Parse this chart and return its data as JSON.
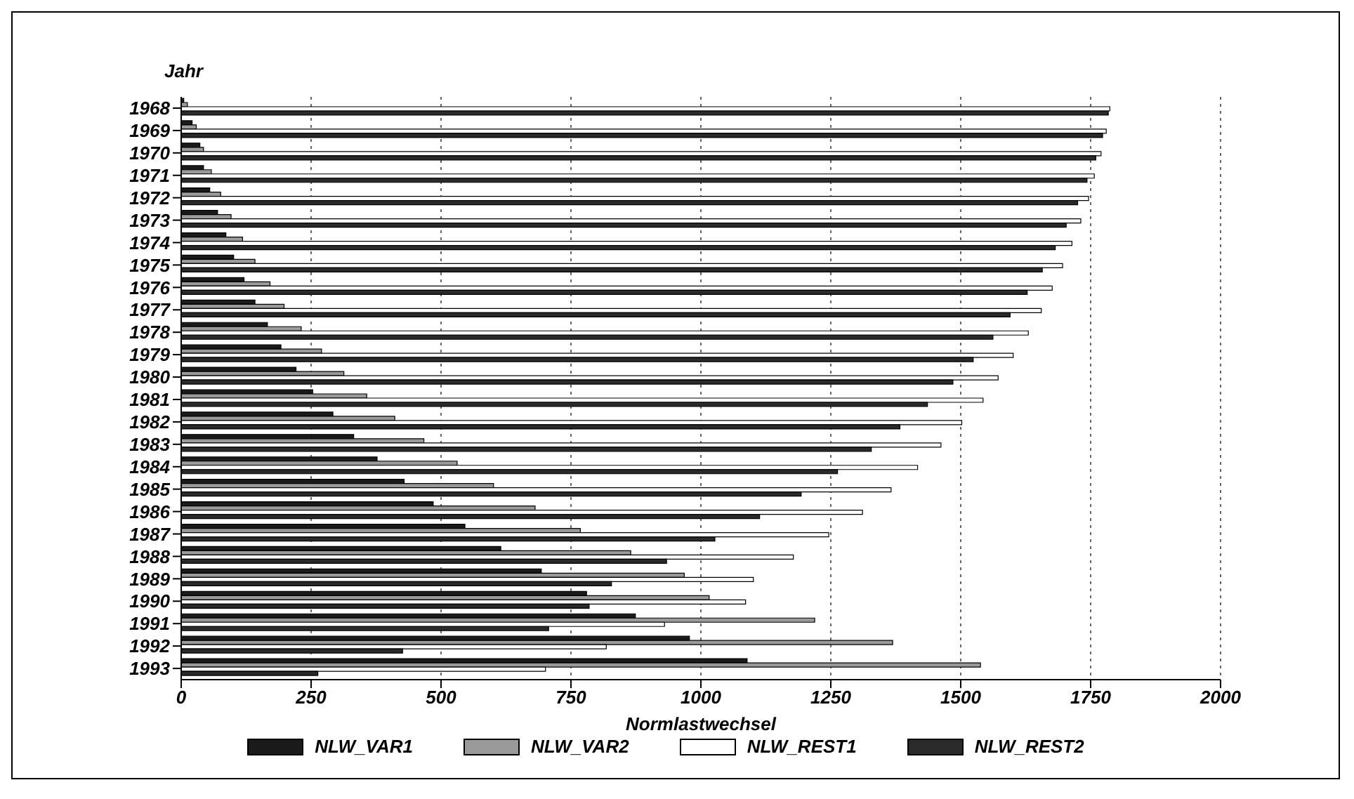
{
  "chart_data": {
    "type": "bar",
    "orientation": "horizontal",
    "ylabel": "Jahr",
    "xlabel": "Normlastwechsel",
    "categories": [
      "1968",
      "1969",
      "1970",
      "1971",
      "1972",
      "1973",
      "1974",
      "1975",
      "1976",
      "1977",
      "1978",
      "1979",
      "1980",
      "1981",
      "1982",
      "1983",
      "1984",
      "1985",
      "1986",
      "1987",
      "1988",
      "1989",
      "1990",
      "1991",
      "1992",
      "1993"
    ],
    "series": [
      {
        "name": "NLW_VAR1",
        "color": "#1a1a1a",
        "values": [
          5,
          21,
          36,
          43,
          55,
          70,
          86,
          101,
          121,
          142,
          166,
          192,
          221,
          253,
          292,
          332,
          377,
          429,
          485,
          546,
          615,
          693,
          780,
          874,
          978,
          1089
        ]
      },
      {
        "name": "NLW_VAR2",
        "color": "#9a9a9a",
        "values": [
          12,
          29,
          43,
          58,
          76,
          96,
          118,
          142,
          171,
          198,
          231,
          270,
          313,
          357,
          411,
          467,
          531,
          601,
          681,
          768,
          865,
          968,
          1016,
          1219,
          1369,
          1538
        ]
      },
      {
        "name": "NLW_REST1",
        "color": "#ffffff",
        "values": [
          1787,
          1780,
          1770,
          1757,
          1746,
          1731,
          1714,
          1696,
          1676,
          1655,
          1630,
          1601,
          1572,
          1543,
          1502,
          1462,
          1417,
          1366,
          1311,
          1246,
          1178,
          1101,
          1086,
          930,
          818,
          701
        ]
      },
      {
        "name": "NLW_REST2",
        "color": "#2a2a2a",
        "values": [
          1784,
          1773,
          1760,
          1743,
          1725,
          1703,
          1682,
          1657,
          1628,
          1595,
          1562,
          1524,
          1485,
          1436,
          1383,
          1328,
          1263,
          1193,
          1113,
          1027,
          934,
          828,
          785,
          707,
          426,
          263
        ]
      }
    ],
    "xlim": [
      0,
      2000
    ],
    "xticks": [
      0,
      250,
      500,
      750,
      1000,
      1250,
      1500,
      1750,
      2000
    ],
    "grid": "x",
    "legend": "bottom"
  }
}
